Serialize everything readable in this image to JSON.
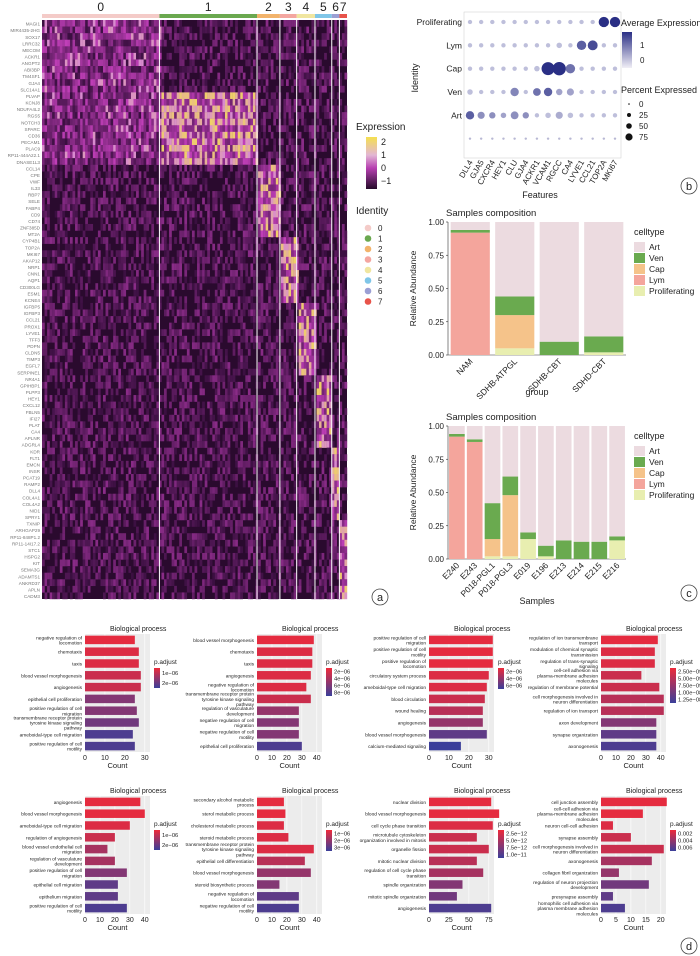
{
  "panel_labels": [
    "a",
    "b",
    "c",
    "d"
  ],
  "heatmap": {
    "cluster_labels": [
      "0",
      "1",
      "2",
      "3",
      "4",
      "5",
      "6",
      "7"
    ],
    "cluster_colors": [
      "#f4cbc8",
      "#6aa84f",
      "#f2b36b",
      "#f4a6a0",
      "#f0e6a0",
      "#7fc6e8",
      "#9b9fd4",
      "#e8534a"
    ],
    "genes": [
      "MAGI1",
      "MIR4435-2HG",
      "SOX17",
      "LRRC32",
      "MECOM",
      "ACKR1",
      "ANGPT2",
      "ABI3BP",
      "TM4SF1",
      "GJA4",
      "SLC14A1",
      "PLVAP",
      "KCNJ8",
      "NDUFA4L2",
      "RGS5",
      "NOTCH3",
      "SPARC",
      "CD36",
      "PECAM1",
      "PLAC9",
      "RP11-444A22.1",
      "DNASE1L3",
      "CCL14",
      "CPE",
      "VWF",
      "IL33",
      "RBP7",
      "SELE",
      "FABP4",
      "CD9",
      "CD74",
      "ZNF385D",
      "MT2A",
      "CYP4B1",
      "TOP2A",
      "MKI67",
      "AKAP12",
      "NRP1",
      "CNN1",
      "AQP1",
      "CD300LG",
      "ESM1",
      "KCNE4",
      "IGFBP5",
      "IGFBP3",
      "CCL21",
      "PROX1",
      "LYVE1",
      "TFF3",
      "PDPN",
      "CLDN5",
      "TIMP3",
      "EGFL7",
      "SERPINE1",
      "NR4A1",
      "GPIHBP1",
      "PLPP3",
      "HEY1",
      "CXCL12",
      "FBLN5",
      "IFI27",
      "PLAT",
      "CA4",
      "APLNR",
      "ADGRL4",
      "KDR",
      "FLT1",
      "EMCN",
      "INSR",
      "PCAT19",
      "RAMP2",
      "DLL4",
      "COL4A1",
      "COL4A2",
      "NID1",
      "SPRY1",
      "TXNIP",
      "ARHGAP29",
      "RP11-848P1.2",
      "RP11-14I17.2",
      "STC1",
      "HSPG2",
      "KIT",
      "SEMA3G",
      "ADAMTS1",
      "ANKRD37",
      "APLN",
      "CADM3"
    ],
    "legend_title": "Expression",
    "legend_ticks": [
      "2",
      "1",
      "0",
      "−1"
    ],
    "identity_title": "Identity",
    "identity_items": [
      "0",
      "1",
      "2",
      "3",
      "4",
      "5",
      "6",
      "7"
    ]
  },
  "dotplot": {
    "rows": [
      "Proliferating",
      "Lym",
      "Cap",
      "Ven",
      "Art"
    ],
    "features": [
      "DLL4",
      "GJA5",
      "CXCR4",
      "HEY1",
      "CLU",
      "GJA4",
      "ACKR1",
      "VCAM1",
      "RGCC",
      "CA4",
      "LYVE1",
      "CCL21",
      "TOP2A",
      "MKI67"
    ],
    "ylabel": "Identity",
    "xlabel": "Features",
    "avg_title": "Average Expression",
    "avg_ticks": [
      "1",
      "0"
    ],
    "pct_title": "Percent Expressed",
    "pct_ticks": [
      "0",
      "25",
      "50",
      "75"
    ],
    "chart_data": {
      "type": "scatter",
      "x_categories": [
        "DLL4",
        "GJA5",
        "CXCR4",
        "HEY1",
        "CLU",
        "GJA4",
        "ACKR1",
        "VCAM1",
        "RGCC",
        "CA4",
        "LYVE1",
        "CCL21",
        "TOP2A",
        "MKI67"
      ],
      "y_categories": [
        "Art",
        "Ven",
        "Cap",
        "Lym",
        "Proliferating"
      ],
      "pct_expressed": [
        [
          30,
          20,
          15,
          10,
          25,
          15,
          5,
          10,
          20,
          10,
          5,
          5,
          5,
          5
        ],
        [
          10,
          5,
          5,
          5,
          30,
          5,
          25,
          30,
          15,
          20,
          5,
          5,
          5,
          5
        ],
        [
          5,
          5,
          5,
          5,
          5,
          5,
          10,
          85,
          90,
          40,
          5,
          5,
          5,
          5
        ],
        [
          5,
          5,
          5,
          5,
          5,
          5,
          5,
          5,
          10,
          5,
          40,
          45,
          5,
          5
        ],
        [
          5,
          5,
          5,
          5,
          5,
          5,
          5,
          5,
          5,
          5,
          5,
          5,
          50,
          50
        ]
      ],
      "avg_expression": [
        [
          1,
          0.5,
          0.5,
          0.3,
          0.5,
          0.5,
          0,
          0,
          0.2,
          0,
          0,
          0,
          0,
          0
        ],
        [
          0,
          0,
          0,
          0,
          0.6,
          0,
          0.8,
          1,
          0.3,
          0.3,
          0,
          0,
          0,
          0
        ],
        [
          0,
          0,
          0,
          0,
          0,
          0,
          0,
          1.5,
          1.5,
          0.8,
          0,
          0,
          0,
          0
        ],
        [
          0,
          0,
          0,
          0,
          0,
          0,
          0,
          0,
          0,
          0,
          1,
          1.2,
          0,
          0
        ],
        [
          0,
          0,
          0,
          0,
          0,
          0,
          0,
          0,
          0,
          0,
          0,
          0,
          1.5,
          1.5
        ]
      ]
    }
  },
  "comp1": {
    "title": "Samples composition",
    "ylabel": "Relative Abundance",
    "xlabel": "group",
    "legend_title": "celltype",
    "chart_data": {
      "type": "bar",
      "stacked": true,
      "categories": [
        "NAM",
        "SDHB-ATPGL",
        "SDHB-CBT",
        "SDHD-CBT"
      ],
      "ylim": [
        0,
        1
      ],
      "yticks": [
        "0.00",
        "0.25",
        "0.50",
        "0.75",
        "1.00"
      ],
      "series": [
        {
          "name": "Proliferating",
          "color": "#e8eeb0",
          "values": [
            0,
            0.05,
            0,
            0.02
          ]
        },
        {
          "name": "Lym",
          "color": "#f4a59c",
          "values": [
            0.92,
            0,
            0,
            0
          ]
        },
        {
          "name": "Cap",
          "color": "#f5c38a",
          "values": [
            0,
            0.25,
            0,
            0
          ]
        },
        {
          "name": "Ven",
          "color": "#6aaa4f",
          "values": [
            0.02,
            0.14,
            0.1,
            0.12
          ]
        },
        {
          "name": "Art",
          "color": "#ecdbe0",
          "values": [
            0.06,
            0.56,
            0.9,
            0.86
          ]
        }
      ]
    }
  },
  "comp2": {
    "title": "Samples composition",
    "ylabel": "Relative Abundance",
    "xlabel": "Samples",
    "legend_title": "celltype",
    "chart_data": {
      "type": "bar",
      "stacked": true,
      "categories": [
        "E240",
        "E243",
        "P018-PGL1",
        "P018-PGL3",
        "E019",
        "E196",
        "E213",
        "E214",
        "E215",
        "E216"
      ],
      "ylim": [
        0,
        1
      ],
      "yticks": [
        "0.00",
        "0.25",
        "0.50",
        "0.75",
        "1.00"
      ],
      "series": [
        {
          "name": "Proliferating",
          "color": "#e8eeb0",
          "values": [
            0,
            0,
            0.02,
            0.02,
            0.15,
            0.02,
            0,
            0,
            0,
            0.14
          ]
        },
        {
          "name": "Lym",
          "color": "#f4a59c",
          "values": [
            0.92,
            0.88,
            0,
            0,
            0,
            0,
            0,
            0,
            0,
            0
          ]
        },
        {
          "name": "Cap",
          "color": "#f5c38a",
          "values": [
            0,
            0,
            0.13,
            0.46,
            0,
            0,
            0,
            0,
            0,
            0
          ]
        },
        {
          "name": "Ven",
          "color": "#6aaa4f",
          "values": [
            0.02,
            0.02,
            0.27,
            0.14,
            0.05,
            0.08,
            0.14,
            0.13,
            0.13,
            0.03
          ]
        },
        {
          "name": "Art",
          "color": "#ecdbe0",
          "values": [
            0.06,
            0.1,
            0.58,
            0.38,
            0.8,
            0.9,
            0.86,
            0.87,
            0.87,
            0.83
          ]
        }
      ]
    }
  },
  "go_panels": [
    {
      "title": "Biological process",
      "xlabel": "Count",
      "xmax": 30,
      "xticks": [
        0,
        10,
        20,
        30
      ],
      "legend_title": "p.adjust",
      "legend_ticks": [
        "1e−06",
        "2e−06"
      ],
      "chart_data": {
        "type": "bar",
        "orientation": "horizontal",
        "categories": [
          "negative regulation of locomotion",
          "chemotaxis",
          "taxis",
          "blood vessel morphogenesis",
          "angiogenesis",
          "epithelial cell proliferation",
          "positive regulation of cell migration",
          "transmembrane receptor protein tyrosine kinase signaling pathway",
          "ameboidal-type cell migration",
          "positive regulation of cell motility"
        ],
        "values": [
          25,
          27,
          27,
          28,
          28,
          25,
          26,
          27,
          24,
          25
        ],
        "p_adjust_rank": [
          0.05,
          0.1,
          0.1,
          0.2,
          0.2,
          0.6,
          0.6,
          0.7,
          0.9,
          0.9
        ]
      }
    },
    {
      "title": "Biological process",
      "xlabel": "Count",
      "xmax": 40,
      "xticks": [
        0,
        10,
        20,
        30,
        40
      ],
      "legend_title": "p.adjust",
      "legend_ticks": [
        "2e−06",
        "4e−06",
        "6e−06",
        "8e−06"
      ],
      "chart_data": {
        "type": "bar",
        "orientation": "horizontal",
        "categories": [
          "blood vessel morphogenesis",
          "chemotaxis",
          "taxis",
          "angiogenesis",
          "negative regulation of locomotion",
          "transmembrane receptor protein tyrosine kinase signaling pathway",
          "regulation of vasculature development",
          "negative regulation of cell migration",
          "negative regulation of cell motility",
          "epithelial cell proliferation"
        ],
        "values": [
          38,
          37,
          37,
          36,
          33,
          36,
          28,
          28,
          28,
          30
        ],
        "p_adjust_rank": [
          0.05,
          0.1,
          0.1,
          0.1,
          0.1,
          0.2,
          0.5,
          0.6,
          0.6,
          0.9
        ]
      }
    },
    {
      "title": "Biological process",
      "xlabel": "Count",
      "xmax": 30,
      "xticks": [
        0,
        10,
        20,
        30
      ],
      "legend_title": "p.adjust",
      "legend_ticks": [
        "2e−06",
        "4e−06",
        "6e−06"
      ],
      "chart_data": {
        "type": "bar",
        "orientation": "horizontal",
        "categories": [
          "positive regulation of cell migration",
          "positive regulation of cell motility",
          "positive regulation of locomotion",
          "circulatory system process",
          "ameboidal-type cell migration",
          "blood circulation",
          "wound healing",
          "angiogenesis",
          "blood vessel morphogenesis",
          "calcium-mediated signaling"
        ],
        "values": [
          32,
          32,
          32,
          30,
          29,
          28,
          27,
          27,
          29,
          16
        ],
        "p_adjust_rank": [
          0.05,
          0.05,
          0.05,
          0.1,
          0.1,
          0.2,
          0.3,
          0.5,
          0.8,
          1.0
        ]
      }
    },
    {
      "title": "Biological process",
      "xlabel": "Count",
      "xmax": 40,
      "xticks": [
        0,
        10,
        20,
        30,
        40
      ],
      "legend_title": "p.adjust",
      "legend_ticks": [
        "2.50e−09",
        "5.00e−09",
        "7.50e−09",
        "1.00e−08",
        "1.25e−08"
      ],
      "chart_data": {
        "type": "bar",
        "orientation": "horizontal",
        "categories": [
          "regulation of ion transmembrane transport",
          "modulation of chemical synaptic transmission",
          "regulation of trans-synaptic signaling",
          "cell-cell adhesion via plasma-membrane adhesion molecules",
          "regulation of membrane potential",
          "cell morphogenesis involved in neuron differentiation",
          "regulation of ion transport",
          "axon development",
          "synapse organization",
          "axonogenesis"
        ],
        "values": [
          38,
          36,
          36,
          27,
          39,
          42,
          42,
          37,
          37,
          37
        ],
        "p_adjust_rank": [
          0.05,
          0.1,
          0.1,
          0.2,
          0.2,
          0.3,
          0.3,
          0.6,
          0.8,
          0.9
        ]
      }
    },
    {
      "title": "Biological process",
      "xlabel": "Count",
      "xmax": 40,
      "xticks": [
        0,
        10,
        20,
        30,
        40
      ],
      "legend_title": "p.adjust",
      "legend_ticks": [
        "1e−06",
        "2e−06"
      ],
      "chart_data": {
        "type": "bar",
        "orientation": "horizontal",
        "categories": [
          "angiogenesis",
          "blood vessel morphogenesis",
          "ameboidal-type cell migration",
          "regulation of angiogenesis",
          "blood vessel endothelial cell migration",
          "regulation of vasculature development",
          "positive regulation of cell migration",
          "epithelial cell migration",
          "epithelium migration",
          "positive regulation of cell motility"
        ],
        "values": [
          37,
          40,
          30,
          20,
          15,
          20,
          28,
          22,
          22,
          28
        ],
        "p_adjust_rank": [
          0.05,
          0.05,
          0.1,
          0.2,
          0.4,
          0.4,
          0.6,
          0.8,
          0.8,
          0.9
        ]
      }
    },
    {
      "title": "Biological process",
      "xlabel": "Count",
      "xmax": 40,
      "xticks": [
        0,
        10,
        20,
        30,
        40
      ],
      "legend_title": "p.adjust",
      "legend_ticks": [
        "1e−06",
        "2e−06",
        "3e−06"
      ],
      "chart_data": {
        "type": "bar",
        "orientation": "horizontal",
        "categories": [
          "secondary alcohol metabolic process",
          "sterol metabolic process",
          "cholesterol metabolic process",
          "steroid metabolic process",
          "transmembrane receptor protein tyrosine kinase signaling pathway",
          "epithelial cell differentiation",
          "blood vessel morphogenesis",
          "steroid biosynthetic process",
          "negative regulation of locomotion",
          "negative regulation of cell motility"
        ],
        "values": [
          18,
          19,
          18,
          21,
          38,
          32,
          36,
          15,
          28,
          28
        ],
        "p_adjust_rank": [
          0.05,
          0.05,
          0.1,
          0.1,
          0.1,
          0.3,
          0.5,
          0.6,
          0.8,
          0.9
        ]
      }
    },
    {
      "title": "Biological process",
      "xlabel": "Count",
      "xmax": 75,
      "xticks": [
        0,
        25,
        50,
        75
      ],
      "legend_title": "p.adjust",
      "legend_ticks": [
        "2.5e−12",
        "5.0e−12",
        "7.5e−12",
        "1.0e−11"
      ],
      "chart_data": {
        "type": "bar",
        "orientation": "horizontal",
        "categories": [
          "nuclear division",
          "blood vessel morphogenesis",
          "cell cycle phase transition",
          "microtubule cytoskeleton organization involved in mitosis",
          "organelle fission",
          "mitotic nuclear division",
          "regulation of cell cycle phase transition",
          "spindle organization",
          "mitotic spindle organization",
          "angiogenesis"
        ],
        "values": [
          78,
          88,
          80,
          60,
          75,
          60,
          68,
          42,
          35,
          78
        ],
        "p_adjust_rank": [
          0.05,
          0.05,
          0.1,
          0.2,
          0.2,
          0.3,
          0.4,
          0.6,
          0.7,
          0.9
        ]
      }
    },
    {
      "title": "Biological process",
      "xlabel": "Count",
      "xmax": 20,
      "xticks": [
        0,
        5,
        10,
        15,
        20
      ],
      "legend_title": "p.adjust",
      "legend_ticks": [
        "0.002",
        "0.004",
        "0.006"
      ],
      "chart_data": {
        "type": "bar",
        "orientation": "horizontal",
        "categories": [
          "cell junction assembly",
          "cell-cell adhesion via plasma-membrane adhesion molecules",
          "neuron cell-cell adhesion",
          "synapse assembly",
          "cell morphogenesis involved in neuron differentiation",
          "axonogenesis",
          "collagen fibril organization",
          "regulation of neuron projection development",
          "presynapse assembly",
          "homophilic cell adhesion via plasma membrane adhesion molecules"
        ],
        "values": [
          22,
          14,
          4,
          10,
          21,
          17,
          6,
          16,
          4,
          8
        ],
        "p_adjust_rank": [
          0.05,
          0.05,
          0.1,
          0.2,
          0.2,
          0.4,
          0.5,
          0.7,
          0.8,
          0.9
        ]
      }
    }
  ]
}
